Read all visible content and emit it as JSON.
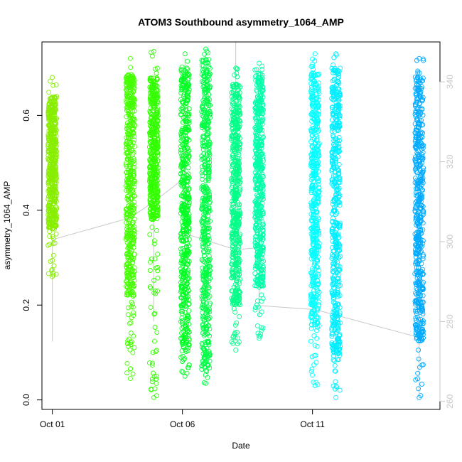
{
  "chart_data": {
    "type": "scatter",
    "title": "ATOM3 Southbound asymmetry_1064_AMP",
    "xlabel": "Date",
    "ylabel": "asymmetry_1064_AMP",
    "x_ticks": [
      "Oct 01",
      "Oct 06",
      "Oct 11"
    ],
    "x_tick_days": [
      1,
      6,
      11
    ],
    "xlim_days": [
      0.6,
      15.9
    ],
    "ylim": [
      -0.02,
      0.755
    ],
    "y_ticks": [
      0.0,
      0.2,
      0.4,
      0.6
    ],
    "y_tick_labels": [
      "0.0",
      "0.2",
      "0.4",
      "0.6"
    ],
    "y2_lim": [
      258,
      350
    ],
    "y2_ticks": [
      260,
      280,
      300,
      320,
      340
    ],
    "y2_tick_labels": [
      "260",
      "280",
      "300",
      "320",
      "340"
    ],
    "grid": false,
    "legend": "none",
    "point_color_scale": "hue from yellow-green (early) to blue (late)",
    "clusters": [
      {
        "day": 1.0,
        "y_min": 0.26,
        "y_max": 0.68,
        "dense_min": 0.36,
        "dense_max": 0.64,
        "color": "#88ee00"
      },
      {
        "day": 4.0,
        "y_min": 0.045,
        "y_max": 0.72,
        "dense_min": 0.22,
        "dense_max": 0.69,
        "color": "#44ff00"
      },
      {
        "day": 4.9,
        "y_min": 0.005,
        "y_max": 0.735,
        "dense_min": 0.38,
        "dense_max": 0.68,
        "color": "#33ff00"
      },
      {
        "day": 6.1,
        "y_min": 0.05,
        "y_max": 0.73,
        "dense_min": 0.1,
        "dense_max": 0.7,
        "color": "#00ff22"
      },
      {
        "day": 6.9,
        "y_min": 0.035,
        "y_max": 0.74,
        "dense_min": 0.06,
        "dense_max": 0.72,
        "color": "#00ff44"
      },
      {
        "day": 8.05,
        "y_min": 0.105,
        "y_max": 0.7,
        "dense_min": 0.2,
        "dense_max": 0.67,
        "color": "#00ff88"
      },
      {
        "day": 8.95,
        "y_min": 0.13,
        "y_max": 0.71,
        "dense_min": 0.24,
        "dense_max": 0.69,
        "color": "#00ffaa"
      },
      {
        "day": 11.1,
        "y_min": 0.03,
        "y_max": 0.73,
        "dense_min": 0.15,
        "dense_max": 0.69,
        "color": "#00ffff"
      },
      {
        "day": 11.9,
        "y_min": 0.005,
        "y_max": 0.73,
        "dense_min": 0.1,
        "dense_max": 0.7,
        "color": "#00eeff"
      },
      {
        "day": 15.1,
        "y_min": 0.005,
        "y_max": 0.72,
        "dense_min": 0.12,
        "dense_max": 0.69,
        "color": "#00aaff"
      }
    ],
    "secondary_series": {
      "name": "",
      "color": "#c8c8c8",
      "points": [
        {
          "day": 1.0,
          "value": 300.5
        },
        {
          "day": 4.0,
          "value": 306
        },
        {
          "day": 4.9,
          "value": 310
        },
        {
          "day": 6.1,
          "value": 316
        },
        {
          "day": 6.1,
          "value": 302
        },
        {
          "day": 8.05,
          "value": 298
        },
        {
          "day": 8.95,
          "value": 298.5
        },
        {
          "day": 8.95,
          "value": 284
        },
        {
          "day": 11.1,
          "value": 283
        },
        {
          "day": 15.1,
          "value": 276
        }
      ],
      "vertical_ranges": [
        {
          "day": 1.0,
          "low": 275,
          "high": 300.5
        },
        {
          "day": 4.0,
          "low": 306,
          "high": 322
        },
        {
          "day": 4.9,
          "low": 280,
          "high": 321
        },
        {
          "day": 6.1,
          "low": 301,
          "high": 346
        },
        {
          "day": 6.9,
          "low": 346,
          "high": 347
        },
        {
          "day": 8.05,
          "low": 286,
          "high": 350
        },
        {
          "day": 8.95,
          "low": 281,
          "high": 300
        },
        {
          "day": 11.1,
          "low": 283,
          "high": 307
        },
        {
          "day": 11.9,
          "low": 270,
          "high": 306
        },
        {
          "day": 15.1,
          "low": 262,
          "high": 286
        }
      ]
    }
  }
}
